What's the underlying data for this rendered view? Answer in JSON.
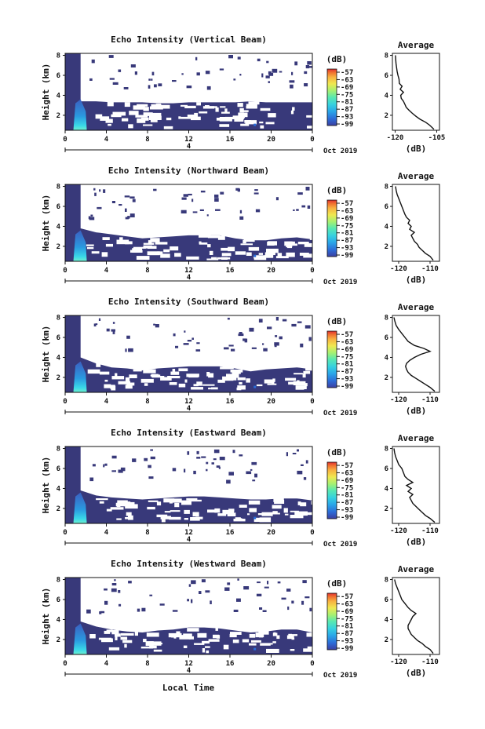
{
  "shared": {
    "date_label": "Oct 2019",
    "local_time_label": "Local Time",
    "height_label": "Height (km)",
    "unit_label": "(dB)",
    "average_title": "Average",
    "x_ticks": [
      "0",
      "4",
      "8",
      "12",
      "16",
      "20",
      "0"
    ],
    "day_marker": "4",
    "y_ticks": [
      "2",
      "4",
      "6",
      "8"
    ],
    "colorbar_ticks": [
      "-57",
      "-63",
      "-69",
      "-75",
      "-81",
      "-87",
      "-93",
      "-99"
    ],
    "colors": {
      "background_echo": "#38397a",
      "white": "#ffffff",
      "colorbar": [
        "#3b3fa0",
        "#2c6cd8",
        "#2aa6e8",
        "#36d0e0",
        "#58e8b0",
        "#a8f070",
        "#f0e850",
        "#f8b040",
        "#f07030",
        "#e03030"
      ]
    }
  },
  "chart_data": [
    {
      "type": "heatmap",
      "title": "Echo Intensity (Vertical Beam)",
      "ylabel": "Height (km)",
      "x_range": [
        0,
        24
      ],
      "y_range": [
        0.5,
        8.2
      ],
      "boundary_height_km": [
        3.3,
        3.4,
        3.4,
        3.3,
        3.3,
        3.3,
        3.2,
        3.2,
        3.3,
        3.3,
        3.3,
        3.3,
        3.4,
        3.3,
        3.3,
        3.3,
        3.3
      ],
      "colorbar": {
        "label": "(dB)",
        "ticks": [
          "-57",
          "-63",
          "-69",
          "-75",
          "-81",
          "-87",
          "-93",
          "-99"
        ]
      },
      "average": {
        "title": "Average",
        "xlabel": "(dB)",
        "xticks": [
          "-120",
          "-105"
        ],
        "x_range": [
          -121,
          -104
        ],
        "yticks": [
          "2",
          "4",
          "6",
          "8"
        ],
        "y_range": [
          0.5,
          8.2
        ],
        "profile_db": [
          -106,
          -107.5,
          -109,
          -111,
          -112.5,
          -113.8,
          -115,
          -116,
          -116.5,
          -117,
          -117.8,
          -118,
          -117,
          -118.2,
          -117.5,
          -118.5,
          -118.6,
          -119,
          -119.3,
          -119.5,
          -119.7,
          -119.8,
          -119.9
        ],
        "profile_height_km": [
          0.6,
          1.0,
          1.3,
          1.6,
          1.9,
          2.2,
          2.5,
          2.8,
          3.1,
          3.4,
          3.7,
          4.0,
          4.3,
          4.6,
          4.9,
          5.2,
          5.6,
          6.0,
          6.4,
          6.8,
          7.2,
          7.6,
          8.0
        ]
      }
    },
    {
      "type": "heatmap",
      "title": "Echo Intensity (Northward Beam)",
      "ylabel": "Height (km)",
      "x_range": [
        0,
        24
      ],
      "y_range": [
        0.5,
        8.2
      ],
      "boundary_height_km": [
        3.6,
        3.8,
        3.4,
        3.2,
        3.0,
        2.8,
        2.9,
        3.0,
        3.1,
        3.1,
        3.1,
        2.8,
        2.6,
        2.6,
        2.8,
        2.9,
        2.7
      ],
      "colorbar": {
        "label": "(dB)",
        "ticks": [
          "-57",
          "-63",
          "-69",
          "-75",
          "-81",
          "-87",
          "-93",
          "-99"
        ]
      },
      "average": {
        "title": "Average",
        "xlabel": "(dB)",
        "xticks": [
          "-120",
          "-110"
        ],
        "x_range": [
          -122,
          -107
        ],
        "yticks": [
          "2",
          "4",
          "6",
          "8"
        ],
        "y_range": [
          0.5,
          8.2
        ],
        "profile_db": [
          -109,
          -110,
          -111.5,
          -112.5,
          -113.5,
          -114,
          -115,
          -115.5,
          -116,
          -115,
          -116.5,
          -116,
          -117,
          -116.5,
          -117.5,
          -118,
          -118.5,
          -119,
          -119.5,
          -120,
          -120.5,
          -120.8,
          -121
        ],
        "profile_height_km": [
          0.6,
          1.0,
          1.3,
          1.6,
          1.9,
          2.2,
          2.5,
          2.8,
          3.1,
          3.4,
          3.7,
          4.0,
          4.3,
          4.6,
          4.9,
          5.2,
          5.6,
          6.0,
          6.4,
          6.8,
          7.2,
          7.6,
          8.0
        ]
      }
    },
    {
      "type": "heatmap",
      "title": "Echo Intensity (Southward Beam)",
      "ylabel": "Height (km)",
      "x_range": [
        0,
        24
      ],
      "y_range": [
        0.5,
        8.2
      ],
      "boundary_height_km": [
        3.8,
        4.0,
        3.4,
        3.0,
        2.9,
        2.7,
        2.9,
        3.0,
        3.1,
        3.1,
        3.1,
        2.9,
        2.6,
        2.8,
        2.9,
        3.0,
        2.8
      ],
      "colorbar": {
        "label": "(dB)",
        "ticks": [
          "-57",
          "-63",
          "-69",
          "-75",
          "-81",
          "-87",
          "-93",
          "-99"
        ]
      },
      "average": {
        "title": "Average",
        "xlabel": "(dB)",
        "xticks": [
          "-120",
          "-110"
        ],
        "x_range": [
          -122,
          -107
        ],
        "yticks": [
          "2",
          "4",
          "6",
          "8"
        ],
        "y_range": [
          0.5,
          8.2
        ],
        "profile_db": [
          -108.5,
          -110,
          -111.5,
          -113,
          -114.5,
          -116,
          -117,
          -117.5,
          -117.8,
          -117.5,
          -116.5,
          -115,
          -113,
          -110,
          -112,
          -115,
          -117,
          -118,
          -119,
          -120,
          -120.8,
          -121.2,
          -121.5
        ],
        "profile_height_km": [
          0.6,
          1.0,
          1.3,
          1.6,
          1.9,
          2.2,
          2.5,
          2.8,
          3.1,
          3.4,
          3.7,
          4.0,
          4.3,
          4.6,
          4.9,
          5.2,
          5.6,
          6.0,
          6.4,
          6.8,
          7.2,
          7.6,
          8.0
        ]
      }
    },
    {
      "type": "heatmap",
      "title": "Echo Intensity (Eastward Beam)",
      "ylabel": "Height (km)",
      "x_range": [
        0,
        24
      ],
      "y_range": [
        0.5,
        8.2
      ],
      "boundary_height_km": [
        3.6,
        3.8,
        3.3,
        3.1,
        3.0,
        2.9,
        3.0,
        3.1,
        3.2,
        3.2,
        3.1,
        3.0,
        2.9,
        2.9,
        3.0,
        3.0,
        2.8
      ],
      "colorbar": {
        "label": "(dB)",
        "ticks": [
          "-57",
          "-63",
          "-69",
          "-75",
          "-81",
          "-87",
          "-93",
          "-99"
        ]
      },
      "average": {
        "title": "Average",
        "xlabel": "(dB)",
        "xticks": [
          "-120",
          "-110"
        ],
        "x_range": [
          -122,
          -107
        ],
        "yticks": [
          "2",
          "4",
          "6",
          "8"
        ],
        "y_range": [
          0.5,
          8.2
        ],
        "profile_db": [
          -108.5,
          -110,
          -111.5,
          -112.5,
          -113.5,
          -114.5,
          -115.5,
          -116,
          -116.5,
          -115.5,
          -117,
          -116,
          -117.5,
          -115.5,
          -117,
          -118,
          -118.5,
          -119,
          -120,
          -120.5,
          -121,
          -121.3,
          -121.5
        ],
        "profile_height_km": [
          0.6,
          1.0,
          1.3,
          1.6,
          1.9,
          2.2,
          2.5,
          2.8,
          3.1,
          3.4,
          3.7,
          4.0,
          4.3,
          4.6,
          4.9,
          5.2,
          5.6,
          6.0,
          6.4,
          6.8,
          7.2,
          7.6,
          8.0
        ]
      }
    },
    {
      "type": "heatmap",
      "title": "Echo Intensity (Westward Beam)",
      "ylabel": "Height (km)",
      "x_range": [
        0,
        24
      ],
      "y_range": [
        0.5,
        8.2
      ],
      "boundary_height_km": [
        3.7,
        3.8,
        3.3,
        3.0,
        2.8,
        2.7,
        2.9,
        3.0,
        3.2,
        3.2,
        3.1,
        2.9,
        2.7,
        2.8,
        3.0,
        3.0,
        2.7
      ],
      "colorbar": {
        "label": "(dB)",
        "ticks": [
          "-57",
          "-63",
          "-69",
          "-75",
          "-81",
          "-87",
          "-93",
          "-99"
        ]
      },
      "average": {
        "title": "Average",
        "xlabel": "(dB)",
        "xticks": [
          "-120",
          "-110"
        ],
        "x_range": [
          -122,
          -107
        ],
        "yticks": [
          "2",
          "4",
          "6",
          "8"
        ],
        "y_range": [
          0.5,
          8.2
        ],
        "profile_db": [
          -109,
          -110,
          -111.5,
          -112.5,
          -114,
          -115,
          -116,
          -116.5,
          -117,
          -117,
          -116.5,
          -116,
          -115.5,
          -114.5,
          -116,
          -117,
          -118,
          -119,
          -119.5,
          -120,
          -120.5,
          -121,
          -121.3
        ],
        "profile_height_km": [
          0.6,
          1.0,
          1.3,
          1.6,
          1.9,
          2.2,
          2.5,
          2.8,
          3.1,
          3.4,
          3.7,
          4.0,
          4.3,
          4.6,
          4.9,
          5.2,
          5.6,
          6.0,
          6.4,
          6.8,
          7.2,
          7.6,
          8.0
        ]
      }
    }
  ]
}
